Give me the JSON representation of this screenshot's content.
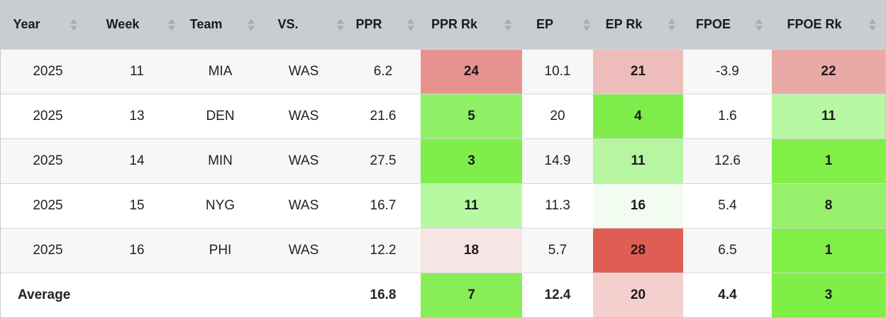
{
  "columns": [
    {
      "key": "year",
      "label": "Year"
    },
    {
      "key": "week",
      "label": "Week"
    },
    {
      "key": "team",
      "label": "Team"
    },
    {
      "key": "vs",
      "label": "VS."
    },
    {
      "key": "ppr",
      "label": "PPR"
    },
    {
      "key": "ppr_rk",
      "label": "PPR Rk"
    },
    {
      "key": "ep",
      "label": "EP"
    },
    {
      "key": "ep_rk",
      "label": "EP Rk"
    },
    {
      "key": "fpoe",
      "label": "FPOE"
    },
    {
      "key": "fpoe_rk",
      "label": "FPOE Rk"
    }
  ],
  "rows": [
    {
      "year": "2025",
      "week": "11",
      "team": "MIA",
      "vs": "WAS",
      "ppr": "6.2",
      "ppr_rk": "24",
      "ep": "10.1",
      "ep_rk": "21",
      "fpoe": "-3.9",
      "fpoe_rk": "22"
    },
    {
      "year": "2025",
      "week": "13",
      "team": "DEN",
      "vs": "WAS",
      "ppr": "21.6",
      "ppr_rk": "5",
      "ep": "20",
      "ep_rk": "4",
      "fpoe": "1.6",
      "fpoe_rk": "11"
    },
    {
      "year": "2025",
      "week": "14",
      "team": "MIN",
      "vs": "WAS",
      "ppr": "27.5",
      "ppr_rk": "3",
      "ep": "14.9",
      "ep_rk": "11",
      "fpoe": "12.6",
      "fpoe_rk": "1"
    },
    {
      "year": "2025",
      "week": "15",
      "team": "NYG",
      "vs": "WAS",
      "ppr": "16.7",
      "ppr_rk": "11",
      "ep": "11.3",
      "ep_rk": "16",
      "fpoe": "5.4",
      "fpoe_rk": "8"
    },
    {
      "year": "2025",
      "week": "16",
      "team": "PHI",
      "vs": "WAS",
      "ppr": "12.2",
      "ppr_rk": "18",
      "ep": "5.7",
      "ep_rk": "28",
      "fpoe": "6.5",
      "fpoe_rk": "1"
    }
  ],
  "average": {
    "label": "Average",
    "ppr": "16.8",
    "ppr_rk": "7",
    "ep": "12.4",
    "ep_rk": "20",
    "fpoe": "4.4",
    "fpoe_rk": "3"
  },
  "colors": {
    "header_bg": "#c9ccd1",
    "sort_arrow": "#a8acb2",
    "cells": {
      "0": {
        "ppr_rk": "#e8928f",
        "ep_rk": "#eebcba",
        "fpoe_rk": "#e9aaa7"
      },
      "1": {
        "ppr_rk": "#8ef064",
        "ep_rk": "#80ec4c",
        "fpoe_rk": "#b8f7a2"
      },
      "2": {
        "ppr_rk": "#7fed4a",
        "ep_rk": "#b7f5a0",
        "fpoe_rk": "#80ef48"
      },
      "3": {
        "ppr_rk": "#b6f9a1",
        "ep_rk": "#f3fcf0",
        "fpoe_rk": "#97f06c"
      },
      "4": {
        "ppr_rk": "#f6e5e4",
        "ep_rk": "#df5d52",
        "fpoe_rk": "#80ef48"
      },
      "avg": {
        "ppr_rk": "#88ee57",
        "ep_rk": "#f4cfce",
        "fpoe_rk": "#7fee46"
      }
    }
  }
}
